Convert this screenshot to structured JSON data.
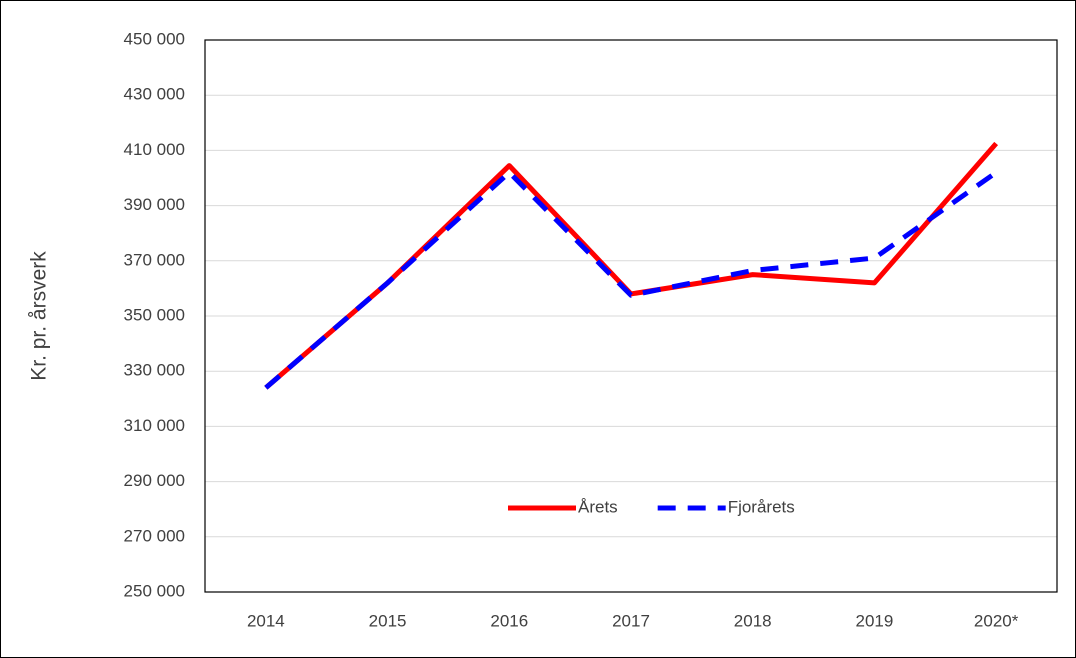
{
  "chart_data": {
    "type": "line",
    "y_label": "Kr. pr. årsverk",
    "categories": [
      "2014",
      "2015",
      "2016",
      "2017",
      "2018",
      "2019",
      "2020*"
    ],
    "series": [
      {
        "name": "Årets",
        "color": "#ff0000",
        "values": [
          324000,
          362000,
          404500,
          358000,
          365000,
          362000,
          412500
        ]
      },
      {
        "name": "Fjorårets",
        "color": "#0000ff",
        "dashed": true,
        "values": [
          324000,
          362000,
          402000,
          357500,
          366500,
          371000,
          402000
        ]
      }
    ],
    "ylim": [
      250000,
      450000
    ],
    "yticks": [
      {
        "value": 250000,
        "label": "250 000"
      },
      {
        "value": 270000,
        "label": "270 000"
      },
      {
        "value": 290000,
        "label": "290 000"
      },
      {
        "value": 310000,
        "label": "310 000"
      },
      {
        "value": 330000,
        "label": "330 000"
      },
      {
        "value": 350000,
        "label": "350 000"
      },
      {
        "value": 370000,
        "label": "370 000"
      },
      {
        "value": 390000,
        "label": "390 000"
      },
      {
        "value": 410000,
        "label": "410 000"
      },
      {
        "value": 430000,
        "label": "430 000"
      },
      {
        "value": 450000,
        "label": "450 000"
      }
    ],
    "grid": true
  }
}
